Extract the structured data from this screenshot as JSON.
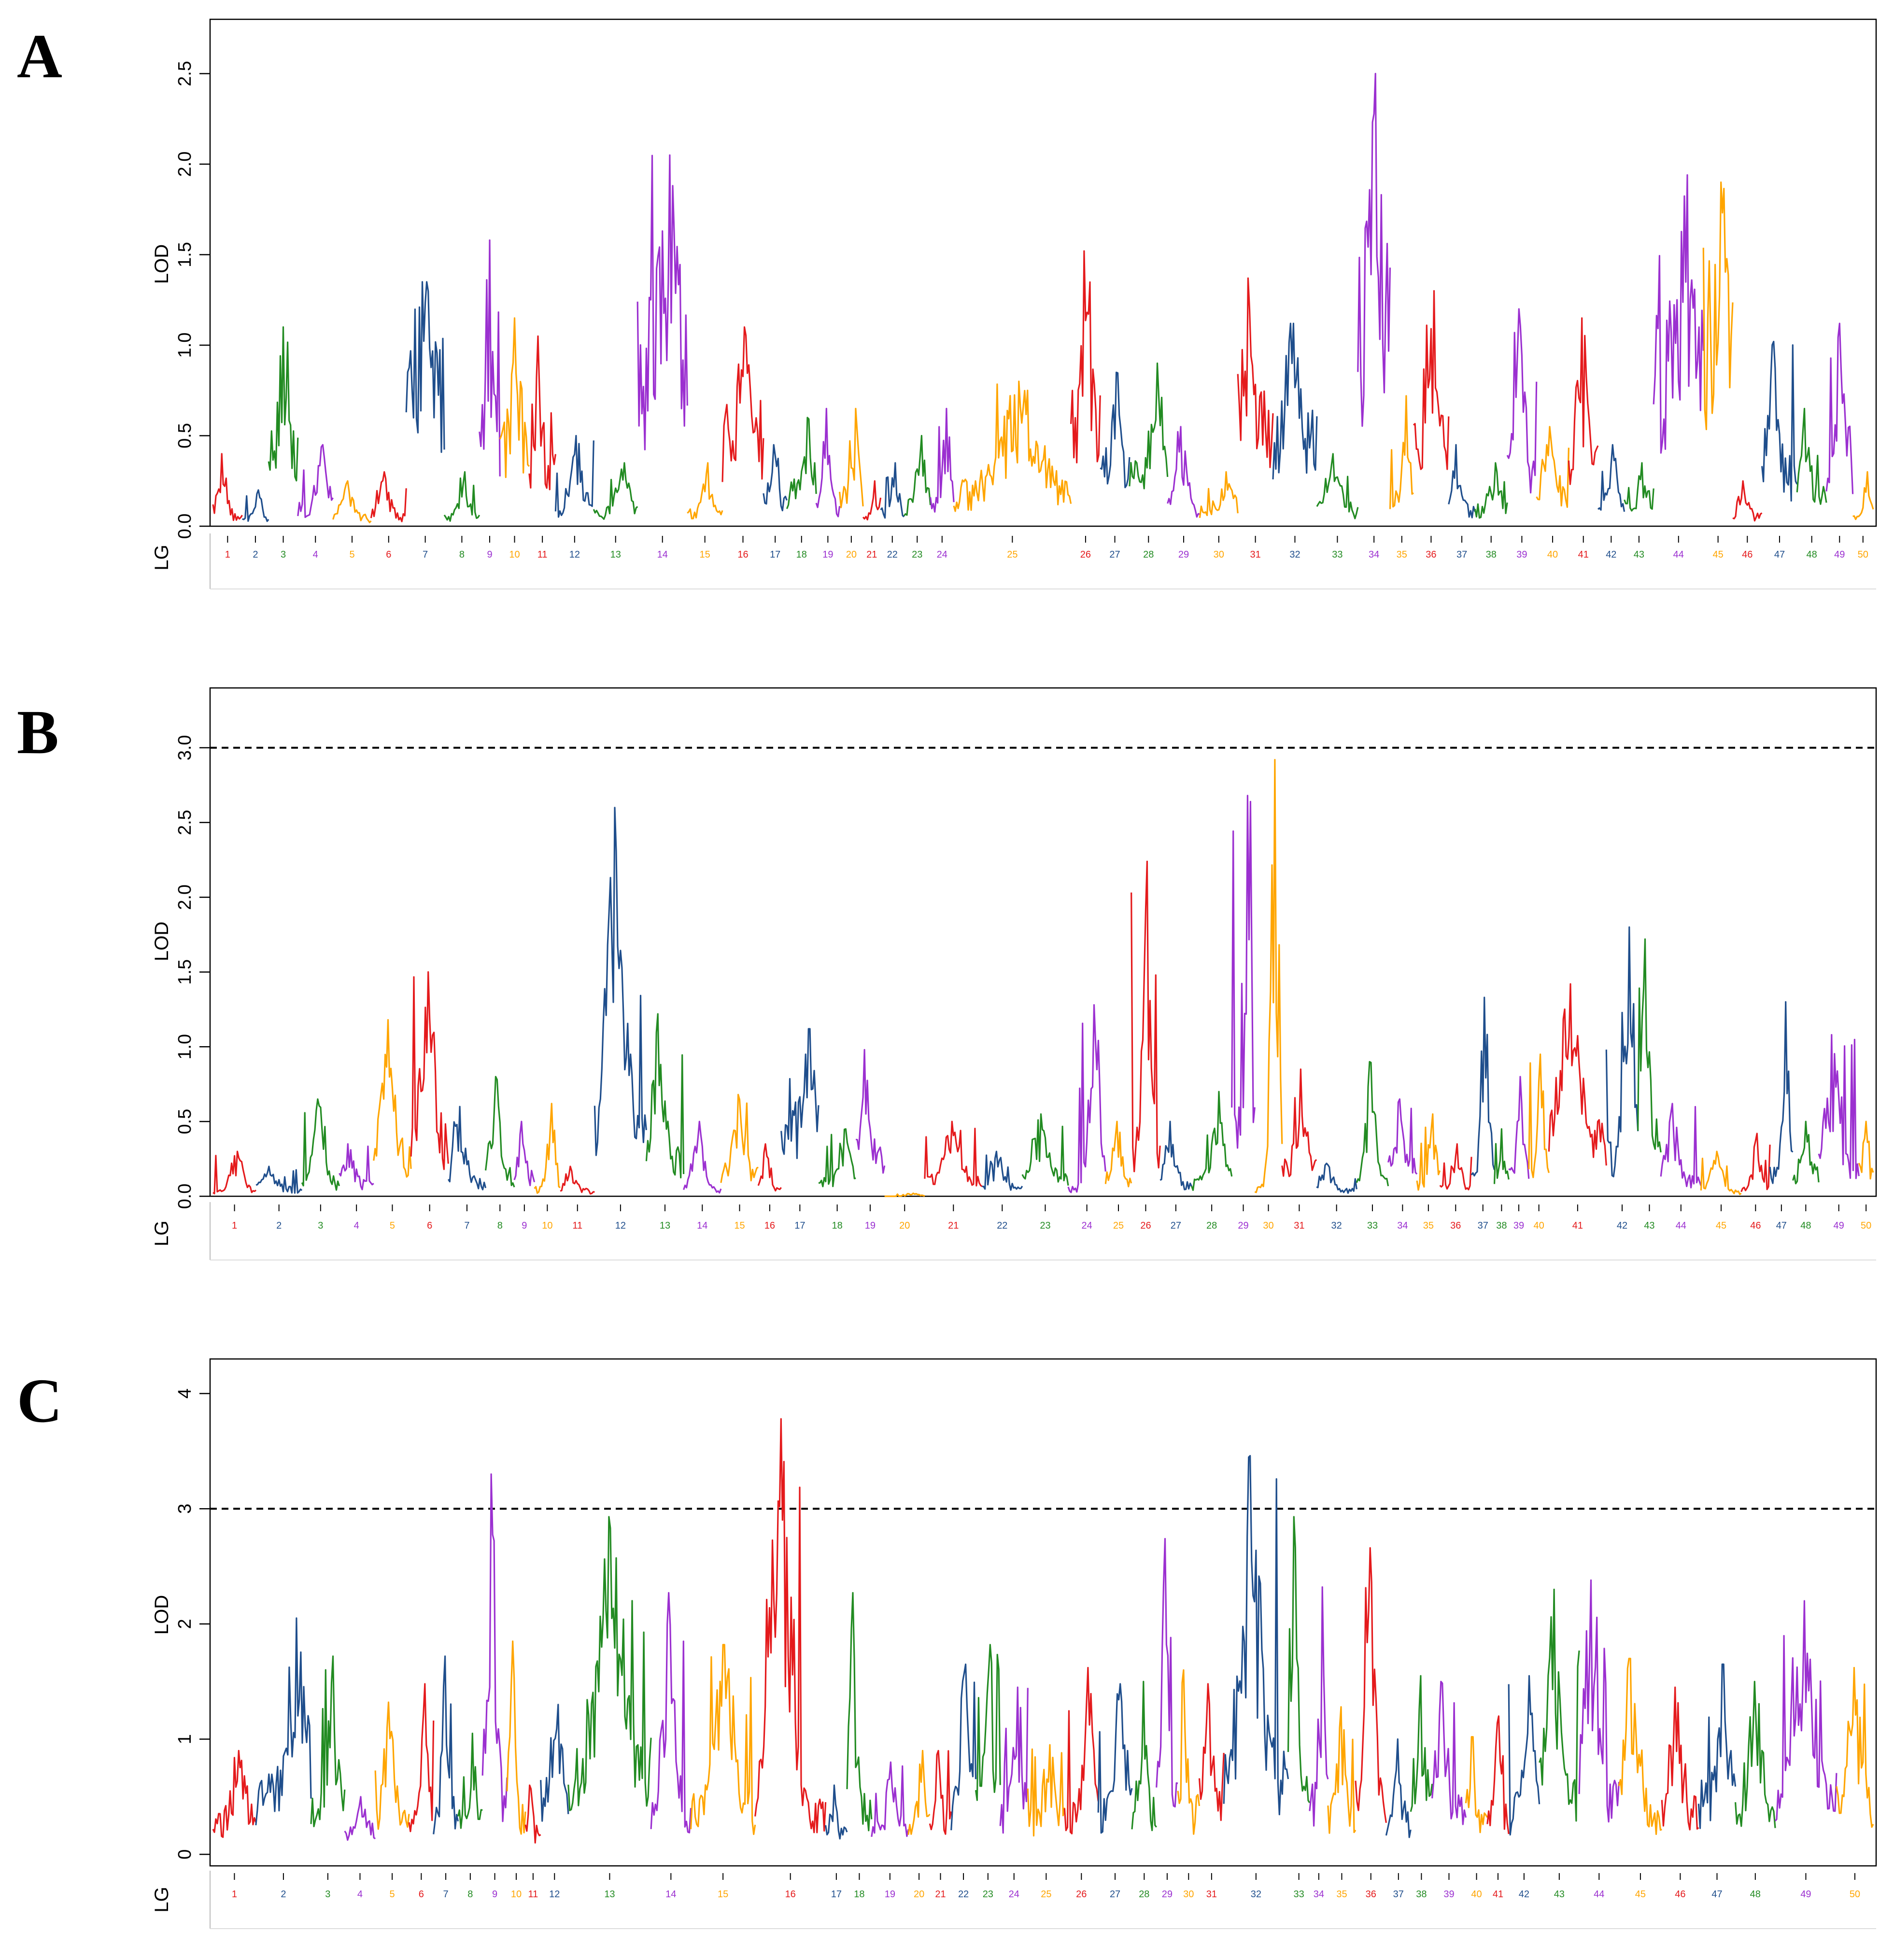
{
  "colors": {
    "palette": [
      "#e41a1c",
      "#1f4e8c",
      "#228b22",
      "#9b30d0",
      "#ffa500"
    ],
    "threshold": "#000000",
    "frame": "#000000"
  },
  "chart_data": [
    {
      "panel": "A",
      "type": "line",
      "ylabel": "LOD",
      "lg_axis_label": "LG",
      "ylim": [
        0,
        2.8
      ],
      "yticks": [
        0.0,
        0.5,
        1.0,
        1.5,
        2.0,
        2.5
      ],
      "ytick_labels": [
        "0.0",
        "0.5",
        "1.0",
        "1.5",
        "2.0",
        "2.5"
      ],
      "threshold": null,
      "lg_labels": [
        "1",
        "2",
        "3",
        "4",
        "5",
        "6",
        "7",
        "8",
        "9",
        "10",
        "11",
        "12",
        "13",
        "14",
        "15",
        "16",
        "17",
        "18",
        "19",
        "20",
        "21",
        "22",
        "23",
        "24",
        "25",
        "26",
        "27",
        "28",
        "29",
        "30",
        "31",
        "32",
        "33",
        "34",
        "35",
        "36",
        "37",
        "38",
        "39",
        "40",
        "41",
        "42",
        "43",
        "44",
        "45",
        "46",
        "47",
        "48",
        "49",
        "50"
      ],
      "lg_widths": [
        2.0,
        1.8,
        2.0,
        2.4,
        2.6,
        2.4,
        2.6,
        2.4,
        1.4,
        2.0,
        1.8,
        2.6,
        3.0,
        3.4,
        2.4,
        2.8,
        1.6,
        2.0,
        1.6,
        1.6,
        1.2,
        1.6,
        1.8,
        1.6,
        8.0,
        2.0,
        2.0,
        2.6,
        2.2,
        2.6,
        2.4,
        3.0,
        2.8,
        2.2,
        1.6,
        2.4,
        1.8,
        2.2,
        2.0,
        2.2,
        2.0,
        1.8,
        2.0,
        3.4,
        2.0,
        2.0,
        2.4,
        2.0,
        1.8,
        1.4
      ],
      "lg_peaks": [
        0.4,
        0.2,
        1.1,
        0.45,
        0.25,
        0.3,
        1.35,
        0.3,
        1.58,
        1.15,
        1.05,
        0.5,
        0.35,
        2.05,
        0.35,
        1.1,
        0.45,
        0.6,
        0.65,
        0.65,
        0.25,
        0.35,
        0.5,
        0.65,
        0.8,
        1.52,
        0.85,
        0.9,
        0.55,
        0.3,
        1.37,
        1.12,
        0.4,
        2.5,
        0.72,
        1.3,
        0.45,
        0.35,
        1.2,
        0.55,
        1.15,
        0.45,
        0.35,
        1.94,
        1.9,
        0.25,
        1.02,
        0.65,
        1.12,
        0.3
      ],
      "lg_bases": [
        0.06,
        0.04,
        0.4,
        0.12,
        0.05,
        0.06,
        0.9,
        0.05,
        0.5,
        0.5,
        0.35,
        0.1,
        0.08,
        1.0,
        0.08,
        0.55,
        0.15,
        0.2,
        0.12,
        0.18,
        0.05,
        0.08,
        0.12,
        0.15,
        0.2,
        0.6,
        0.35,
        0.3,
        0.12,
        0.1,
        0.6,
        0.5,
        0.1,
        1.3,
        0.15,
        0.5,
        0.1,
        0.1,
        0.35,
        0.2,
        0.4,
        0.12,
        0.12,
        0.9,
        1.2,
        0.06,
        0.3,
        0.2,
        0.4,
        0.06
      ]
    },
    {
      "panel": "B",
      "type": "line",
      "ylabel": "LOD",
      "lg_axis_label": "LG",
      "ylim": [
        0,
        3.4
      ],
      "yticks": [
        0.0,
        0.5,
        1.0,
        1.5,
        2.0,
        2.5,
        3.0
      ],
      "ytick_labels": [
        "0.0",
        "0.5",
        "1.0",
        "1.5",
        "2.0",
        "2.5",
        "3.0"
      ],
      "threshold": 3.0,
      "lg_labels": [
        "1",
        "2",
        "3",
        "4",
        "5",
        "6",
        "7",
        "8",
        "9",
        "10",
        "11",
        "12",
        "13",
        "14",
        "15",
        "16",
        "17",
        "18",
        "19",
        "20",
        "21",
        "22",
        "23",
        "24",
        "25",
        "26",
        "27",
        "28",
        "29",
        "30",
        "31",
        "32",
        "33",
        "34",
        "35",
        "36",
        "37",
        "38",
        "39",
        "40",
        "41",
        "42",
        "43",
        "44",
        "45",
        "46",
        "47",
        "48",
        "49",
        "50"
      ],
      "lg_widths": [
        3.0,
        3.2,
        2.6,
        2.4,
        2.6,
        2.6,
        2.6,
        2.0,
        1.4,
        1.8,
        2.4,
        3.6,
        2.6,
        2.6,
        2.6,
        1.6,
        2.6,
        2.6,
        2.0,
        2.8,
        4.0,
        2.8,
        3.2,
        2.6,
        1.8,
        2.0,
        2.2,
        2.8,
        1.6,
        1.9,
        2.4,
        2.8,
        2.2,
        2.0,
        1.6,
        2.2,
        1.6,
        1.0,
        1.4,
        1.4,
        4.0,
        2.2,
        1.6,
        2.8,
        2.8,
        2.0,
        1.6,
        1.8,
        2.8,
        1.0
      ],
      "lg_peaks": [
        0.3,
        0.2,
        0.65,
        0.35,
        1.18,
        1.5,
        0.6,
        0.8,
        0.5,
        0.62,
        0.2,
        2.6,
        1.22,
        0.5,
        0.68,
        0.35,
        1.12,
        0.45,
        0.98,
        0.02,
        0.5,
        0.3,
        0.55,
        1.28,
        0.5,
        2.24,
        0.5,
        0.7,
        2.68,
        2.92,
        0.85,
        0.22,
        0.9,
        0.65,
        0.55,
        0.35,
        1.33,
        0.45,
        0.8,
        0.95,
        1.42,
        1.8,
        1.72,
        0.62,
        0.3,
        0.42,
        1.3,
        0.5,
        1.08,
        0.5
      ],
      "lg_bases": [
        0.03,
        0.05,
        0.1,
        0.1,
        0.3,
        0.4,
        0.1,
        0.15,
        0.15,
        0.05,
        0.04,
        0.5,
        0.3,
        0.05,
        0.2,
        0.05,
        0.5,
        0.1,
        0.3,
        0.0,
        0.1,
        0.06,
        0.12,
        0.05,
        0.12,
        0.3,
        0.1,
        0.1,
        0.5,
        0.05,
        0.2,
        0.04,
        0.1,
        0.2,
        0.1,
        0.06,
        0.2,
        0.12,
        0.15,
        0.2,
        0.4,
        0.3,
        0.5,
        0.12,
        0.03,
        0.05,
        0.2,
        0.15,
        0.2,
        0.2
      ]
    },
    {
      "panel": "C",
      "type": "line",
      "ylabel": "LOD",
      "lg_axis_label": "LG",
      "ylim": [
        -0.1,
        4.3
      ],
      "yticks": [
        0,
        1,
        2,
        3,
        4
      ],
      "ytick_labels": [
        "0",
        "1",
        "2",
        "3",
        "4"
      ],
      "threshold": 3.0,
      "lg_labels": [
        "1",
        "2",
        "3",
        "4",
        "5",
        "6",
        "7",
        "8",
        "9",
        "10",
        "11",
        "12",
        "13",
        "14",
        "15",
        "16",
        "17",
        "18",
        "19",
        "20",
        "21",
        "22",
        "23",
        "24",
        "25",
        "26",
        "27",
        "28",
        "29",
        "30",
        "31",
        "32",
        "33",
        "34",
        "35",
        "36",
        "37",
        "38",
        "39",
        "40",
        "41",
        "42",
        "43",
        "44",
        "45",
        "46",
        "47",
        "48",
        "49",
        "50"
      ],
      "lg_widths": [
        2.8,
        3.6,
        2.2,
        2.0,
        2.2,
        1.6,
        1.6,
        1.6,
        1.6,
        1.2,
        1.0,
        1.8,
        5.4,
        2.6,
        4.2,
        4.6,
        1.4,
        1.6,
        2.4,
        1.4,
        1.4,
        1.6,
        1.6,
        1.8,
        2.4,
        2.2,
        2.2,
        1.6,
        1.4,
        1.4,
        1.6,
        4.2,
        1.4,
        1.2,
        1.8,
        2.0,
        1.6,
        1.4,
        2.2,
        1.4,
        1.4,
        2.0,
        2.6,
        2.6,
        2.8,
        2.4,
        2.4,
        2.6,
        4.0,
        2.4
      ],
      "lg_peaks": [
        0.9,
        2.05,
        1.72,
        0.5,
        1.32,
        1.48,
        1.72,
        1.05,
        3.3,
        1.85,
        0.6,
        1.3,
        2.93,
        2.27,
        1.82,
        3.78,
        0.6,
        2.27,
        0.8,
        0.9,
        0.9,
        1.65,
        1.82,
        1.45,
        0.95,
        1.62,
        1.48,
        1.5,
        2.74,
        1.6,
        1.48,
        3.46,
        2.93,
        2.32,
        1.28,
        2.66,
        1.0,
        1.55,
        1.5,
        1.02,
        1.2,
        1.55,
        2.3,
        2.38,
        1.7,
        1.45,
        1.65,
        1.5,
        2.2,
        1.62
      ],
      "lg_bases": [
        0.3,
        0.6,
        0.4,
        0.2,
        0.3,
        0.4,
        0.3,
        0.3,
        0.6,
        0.4,
        0.2,
        0.5,
        0.8,
        0.4,
        0.4,
        0.4,
        0.2,
        0.4,
        0.2,
        0.3,
        0.3,
        0.5,
        0.5,
        0.4,
        0.3,
        0.4,
        0.4,
        0.4,
        0.6,
        0.4,
        0.5,
        0.7,
        0.6,
        0.5,
        0.4,
        0.5,
        0.3,
        0.5,
        0.4,
        0.3,
        0.3,
        0.4,
        0.6,
        0.5,
        0.4,
        0.4,
        0.5,
        0.4,
        0.6,
        0.5
      ]
    }
  ]
}
